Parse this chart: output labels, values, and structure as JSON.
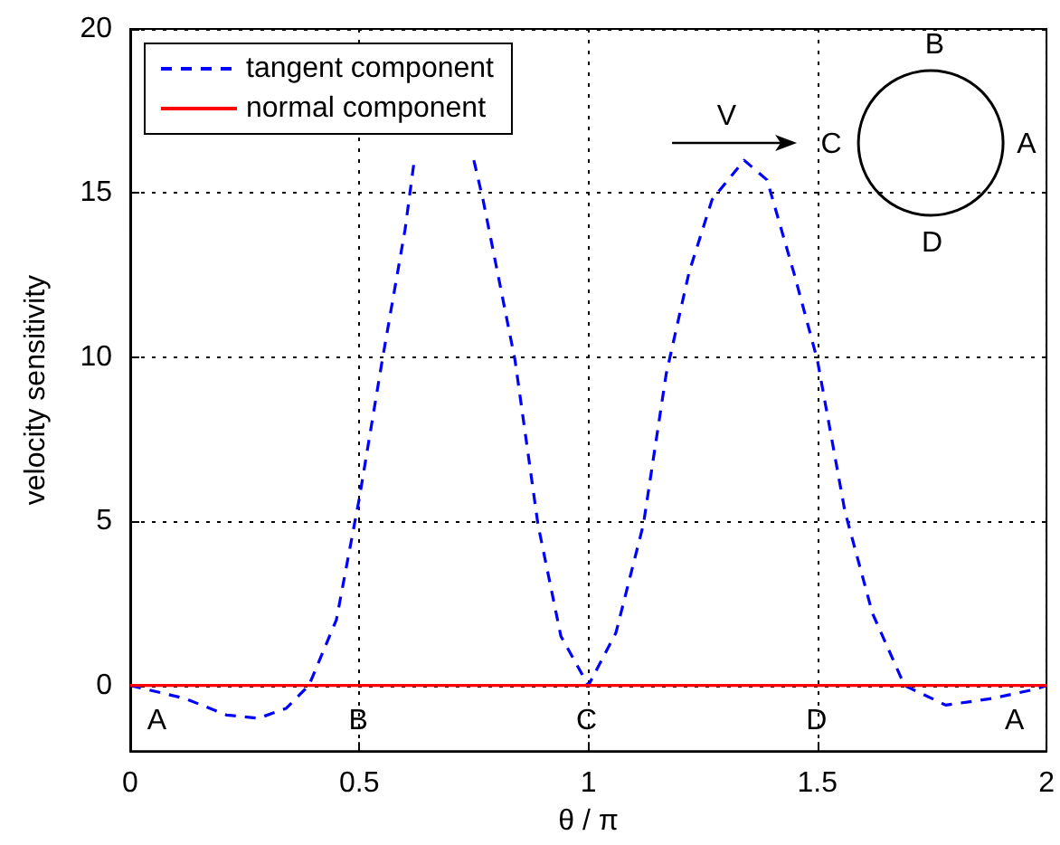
{
  "chart_data": {
    "type": "line",
    "xlabel": "θ / π",
    "ylabel": "velocity sensitivity",
    "xlim": [
      0,
      2
    ],
    "xticks": [
      0,
      0.5,
      1,
      1.5,
      2
    ],
    "ylim": [
      -2,
      20
    ],
    "yticks": [
      0,
      5,
      10,
      15,
      20
    ],
    "grid": true,
    "legend": "top left",
    "marker": "none",
    "series": [
      {
        "name": "tangent component",
        "color": "#0000ff",
        "line_style": "dashed",
        "x": [
          0,
          0.12,
          0.21,
          0.28,
          0.34,
          0.39,
          0.45,
          0.5,
          0.55,
          0.6,
          0.62,
          0.68,
          0.75,
          0.77,
          0.84,
          0.89,
          0.94,
          1.0,
          1.06,
          1.12,
          1.17,
          1.22,
          1.27,
          1.34,
          1.39,
          1.45,
          1.5,
          1.56,
          1.62,
          1.69,
          1.78,
          1.88,
          1.98,
          2.0
        ],
        "values": [
          0,
          -0.4,
          -0.9,
          -1.0,
          -0.7,
          0,
          2.0,
          5.7,
          9.9,
          13.9,
          16.0,
          null,
          16.0,
          14.8,
          9.9,
          4.9,
          1.5,
          0,
          1.6,
          4.9,
          9.5,
          12.6,
          14.8,
          16.0,
          15.4,
          12.5,
          9.9,
          5.3,
          2.2,
          0,
          -0.6,
          -0.4,
          -0.1,
          0
        ]
      },
      {
        "name": "normal component",
        "color": "#ff0000",
        "line_style": "solid",
        "x": [
          0,
          2
        ],
        "values": [
          0,
          0
        ]
      }
    ],
    "annotations": [
      "A",
      "B",
      "C",
      "D",
      "A",
      "V",
      "B",
      "C",
      "A",
      "D"
    ]
  }
}
